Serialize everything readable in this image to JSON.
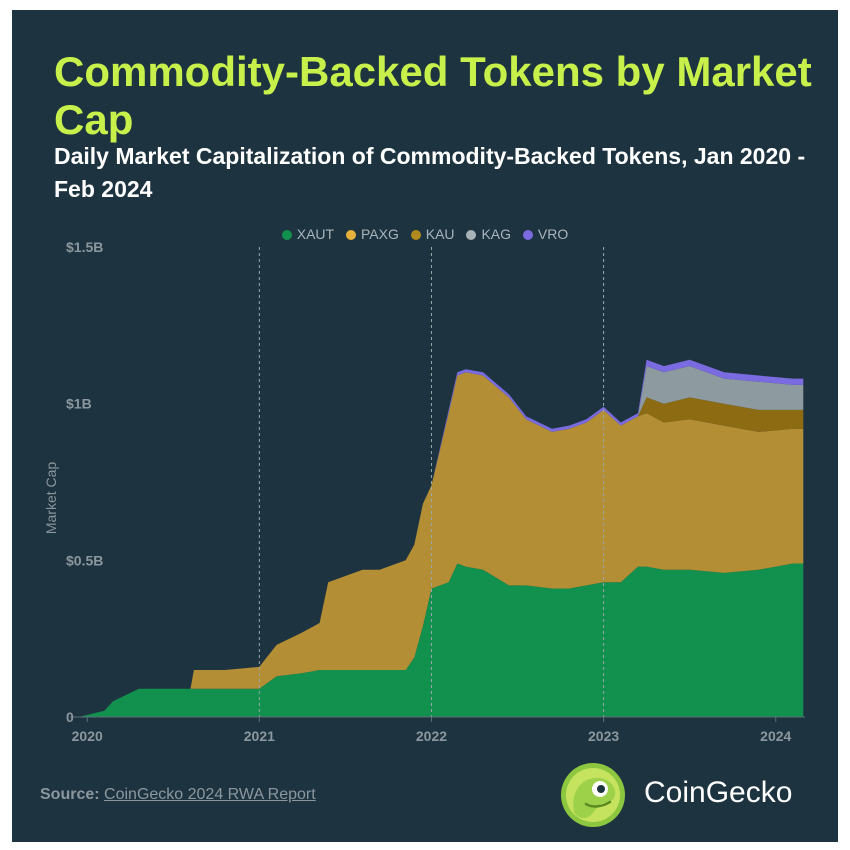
{
  "title": "Commodity-Backed Tokens by Market Cap",
  "subtitle": "Daily Market Capitalization of Commodity-Backed Tokens, Jan 2020 - Feb 2024",
  "source_label": "Source:",
  "source_text": "CoinGecko 2024 RWA Report",
  "brand": "CoinGecko",
  "colors": {
    "background": "#1d3440",
    "title": "#c8f04a",
    "XAUT": "#12904d",
    "PAXG": "#b48e35",
    "KAU": "#8c6b13",
    "KAG": "#8d9ba0",
    "VRO": "#7b6be0"
  },
  "chart_data": {
    "type": "area",
    "stacked": true,
    "ylabel": "Market Cap",
    "ylim": [
      0,
      1.5
    ],
    "y_ticks": [
      {
        "value": 0,
        "label": "0"
      },
      {
        "value": 0.5,
        "label": "$0.5B"
      },
      {
        "value": 1.0,
        "label": "$1B"
      },
      {
        "value": 1.5,
        "label": "$1.5B"
      }
    ],
    "x_ticks": [
      "2020",
      "2021",
      "2022",
      "2023",
      "2024"
    ],
    "x_tick_values": [
      2020.0,
      2021.0,
      2022.0,
      2023.0,
      2024.0
    ],
    "xlim": [
      2019.9,
      2024.17
    ],
    "year_gridlines": [
      2021.0,
      2022.0,
      2023.0
    ],
    "legend_position": "top",
    "x": [
      2019.95,
      2020.1,
      2020.15,
      2020.3,
      2020.45,
      2020.6,
      2020.62,
      2020.8,
      2021.0,
      2021.1,
      2021.25,
      2021.35,
      2021.4,
      2021.5,
      2021.6,
      2021.7,
      2021.85,
      2021.9,
      2021.95,
      2022.0,
      2022.1,
      2022.15,
      2022.2,
      2022.3,
      2022.45,
      2022.55,
      2022.7,
      2022.8,
      2022.9,
      2023.0,
      2023.1,
      2023.2,
      2023.25,
      2023.35,
      2023.5,
      2023.7,
      2023.9,
      2024.1,
      2024.16
    ],
    "series": [
      {
        "name": "XAUT",
        "values": [
          0.0,
          0.02,
          0.05,
          0.09,
          0.09,
          0.09,
          0.09,
          0.09,
          0.09,
          0.13,
          0.14,
          0.15,
          0.15,
          0.15,
          0.15,
          0.15,
          0.15,
          0.19,
          0.29,
          0.41,
          0.43,
          0.49,
          0.48,
          0.47,
          0.42,
          0.42,
          0.41,
          0.41,
          0.42,
          0.43,
          0.43,
          0.48,
          0.48,
          0.47,
          0.47,
          0.46,
          0.47,
          0.49,
          0.49
        ]
      },
      {
        "name": "PAXG",
        "values": [
          0.0,
          0.0,
          0.0,
          0.0,
          0.0,
          0.0,
          0.06,
          0.06,
          0.07,
          0.1,
          0.13,
          0.15,
          0.28,
          0.3,
          0.32,
          0.32,
          0.35,
          0.36,
          0.39,
          0.33,
          0.54,
          0.6,
          0.62,
          0.62,
          0.6,
          0.53,
          0.5,
          0.51,
          0.52,
          0.55,
          0.5,
          0.48,
          0.49,
          0.47,
          0.48,
          0.47,
          0.44,
          0.43,
          0.43
        ]
      },
      {
        "name": "KAU",
        "values": [
          0,
          0,
          0,
          0,
          0,
          0,
          0,
          0,
          0,
          0,
          0,
          0,
          0,
          0,
          0,
          0,
          0,
          0,
          0,
          0,
          0,
          0,
          0,
          0,
          0,
          0,
          0,
          0,
          0,
          0,
          0,
          0,
          0.05,
          0.06,
          0.07,
          0.07,
          0.07,
          0.06,
          0.06
        ]
      },
      {
        "name": "KAG",
        "values": [
          0,
          0,
          0,
          0,
          0,
          0,
          0,
          0,
          0,
          0,
          0,
          0,
          0,
          0,
          0,
          0,
          0,
          0,
          0,
          0,
          0,
          0,
          0,
          0,
          0,
          0,
          0,
          0,
          0,
          0,
          0,
          0,
          0.1,
          0.1,
          0.1,
          0.08,
          0.09,
          0.08,
          0.08
        ]
      },
      {
        "name": "VRO",
        "values": [
          0,
          0,
          0,
          0,
          0,
          0,
          0,
          0,
          0,
          0,
          0,
          0,
          0,
          0,
          0,
          0,
          0,
          0,
          0,
          0,
          0.01,
          0.01,
          0.01,
          0.01,
          0.01,
          0.01,
          0.01,
          0.01,
          0.01,
          0.01,
          0.01,
          0.01,
          0.02,
          0.02,
          0.02,
          0.02,
          0.02,
          0.02,
          0.02
        ]
      }
    ]
  }
}
